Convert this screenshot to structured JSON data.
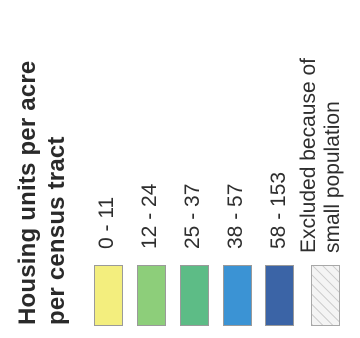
{
  "legend": {
    "title_line1": "Housing units per acre",
    "title_line2": "per census tract",
    "classes": [
      {
        "label": "0 - 11",
        "color": "#f3ee7e"
      },
      {
        "label": "12 - 24",
        "color": "#8dce7a"
      },
      {
        "label": "25 - 37",
        "color": "#5dbc86"
      },
      {
        "label": "38 - 57",
        "color": "#3b93d4"
      },
      {
        "label": "58 - 153",
        "color": "#3b64a6"
      }
    ],
    "excluded": {
      "label_line1": "Excluded because of",
      "label_line2": "small population",
      "pattern": "hatched",
      "color": "#f4f4f4"
    }
  }
}
